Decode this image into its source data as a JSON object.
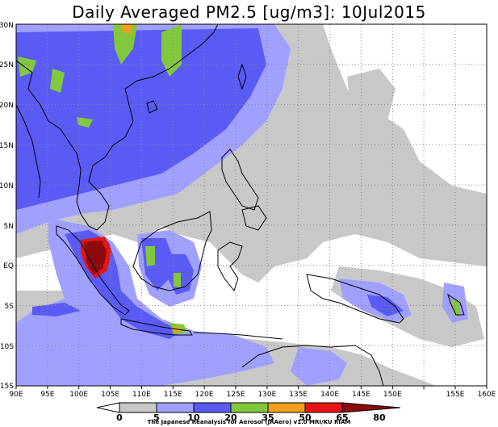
{
  "title": "Daily Averaged PM2.5 [ug/m3]: 10Jul2015",
  "axes": {
    "lon_labels": [
      "90E",
      "95E",
      "100E",
      "105E",
      "110E",
      "115E",
      "120E",
      "125E",
      "130E",
      "135E",
      "140E",
      "145E",
      "150E",
      "155E",
      "160E"
    ],
    "lat_labels": [
      "30N",
      "25N",
      "20N",
      "15N",
      "10N",
      "5N",
      "EQ",
      "5S",
      "10S",
      "15S"
    ]
  },
  "colorbar": {
    "levels": [
      "0",
      "5",
      "10",
      "20",
      "35",
      "50",
      "65",
      "80"
    ],
    "colors": [
      "#ffffff",
      "#c8c8c8",
      "#a0a0ff",
      "#5a5af5",
      "#82c83c",
      "#f0a01e",
      "#e61414",
      "#8c0a0a"
    ]
  },
  "credit": "The Japanese Reanalysis for Aerosol (JRAero) v1.0 MRI/KU RIAM"
}
